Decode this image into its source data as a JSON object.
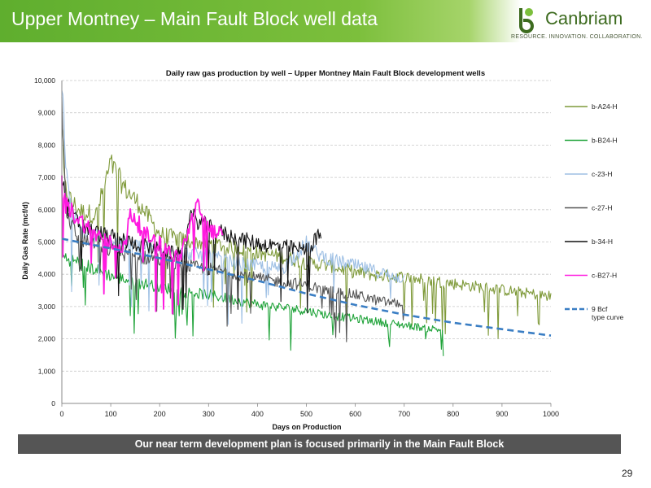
{
  "slide": {
    "title": "Upper Montney – Main Fault Block well data",
    "banner": "Our near term development plan is focused primarily in the Main Fault Block",
    "page_number": "29"
  },
  "logo": {
    "wordmark": "Canbriam",
    "tagline": "RESOURCE. INNOVATION. COLLABORATION.",
    "icon": "canbriam-logo-icon"
  },
  "chart_data": {
    "type": "line",
    "title": "Daily raw gas production by well – Upper Montney Main Fault Block development wells",
    "xlabel": "Days on Production",
    "ylabel": "Daily Gas Rate (mcf/d)",
    "xlim": [
      0,
      1000
    ],
    "ylim": [
      0,
      10000
    ],
    "x_ticks": [
      "0",
      "100",
      "200",
      "300",
      "400",
      "500",
      "600",
      "700",
      "800",
      "900",
      "1000"
    ],
    "y_ticks": [
      "0",
      "1,000",
      "2,000",
      "3,000",
      "4,000",
      "5,000",
      "6,000",
      "7,000",
      "8,000",
      "9,000",
      "10,000"
    ],
    "grid": "horizontal-dashed",
    "legend_position": "right",
    "series": [
      {
        "name": "b-A24-H",
        "color": "#7f9a3a",
        "style": "solid",
        "x": [
          0,
          5,
          20,
          40,
          70,
          100,
          130,
          160,
          200,
          250,
          300,
          350,
          400,
          450,
          500,
          550,
          600,
          650,
          700,
          750,
          800,
          850,
          900,
          950,
          1000
        ],
        "y": [
          9000,
          6800,
          6300,
          6000,
          5900,
          7500,
          6700,
          6200,
          5300,
          5100,
          5000,
          4900,
          4700,
          4600,
          4400,
          4300,
          4100,
          4000,
          3950,
          3850,
          3750,
          3650,
          3550,
          3450,
          3350
        ]
      },
      {
        "name": "b-B24-H",
        "color": "#1fa339",
        "style": "solid",
        "x": [
          0,
          20,
          50,
          100,
          150,
          200,
          250,
          300,
          350,
          400,
          450,
          500,
          550,
          600,
          650,
          700,
          750,
          780
        ],
        "y": [
          4600,
          4500,
          4300,
          4000,
          3800,
          3650,
          3500,
          3400,
          3250,
          3100,
          3000,
          2900,
          2750,
          2650,
          2550,
          2450,
          2350,
          2300
        ]
      },
      {
        "name": "c-23-H",
        "color": "#9dbfe4",
        "style": "solid",
        "x": [
          0,
          5,
          10,
          20,
          40,
          80,
          120,
          160,
          200,
          250,
          300,
          350,
          400,
          450,
          500,
          520,
          550,
          600,
          650,
          700
        ],
        "y": [
          10000,
          8500,
          7000,
          6000,
          5400,
          5200,
          5000,
          4900,
          4800,
          4700,
          4600,
          4400,
          4300,
          4200,
          5000,
          4700,
          4500,
          4300,
          4100,
          3900
        ]
      },
      {
        "name": "c-27-H",
        "color": "#555555",
        "style": "solid",
        "x": [
          0,
          10,
          30,
          60,
          100,
          150,
          200,
          250,
          300,
          350,
          400,
          450,
          500,
          550,
          600,
          650,
          700
        ],
        "y": [
          9500,
          6000,
          5200,
          5000,
          4800,
          4600,
          4500,
          4300,
          4200,
          4100,
          3900,
          3800,
          3700,
          3500,
          3400,
          3200,
          3100
        ]
      },
      {
        "name": "b-34-H",
        "color": "#111111",
        "style": "solid",
        "x": [
          0,
          10,
          30,
          60,
          100,
          150,
          200,
          250,
          260,
          300,
          350,
          400,
          450,
          500,
          530
        ],
        "y": [
          7000,
          6200,
          5700,
          5400,
          5200,
          5000,
          4800,
          4600,
          5900,
          5500,
          5200,
          5000,
          4900,
          4800,
          5300
        ]
      },
      {
        "name": "c-B27-H",
        "color": "#ff1adf",
        "style": "solid",
        "x": [
          0,
          5,
          20,
          40,
          60,
          100,
          130,
          140,
          170,
          200,
          240,
          275,
          300,
          330
        ],
        "y": [
          7000,
          6300,
          6000,
          5700,
          5400,
          5000,
          4900,
          6000,
          5300,
          5000,
          4500,
          6200,
          5500,
          5200
        ]
      },
      {
        "name": "9 Bcf type curve",
        "color": "#3a7ec4",
        "style": "dashed",
        "x": [
          0,
          50,
          100,
          200,
          300,
          400,
          500,
          600,
          700,
          800,
          900,
          1000
        ],
        "y": [
          5100,
          4950,
          4800,
          4500,
          4150,
          3800,
          3400,
          3050,
          2750,
          2500,
          2300,
          2100
        ]
      }
    ]
  }
}
